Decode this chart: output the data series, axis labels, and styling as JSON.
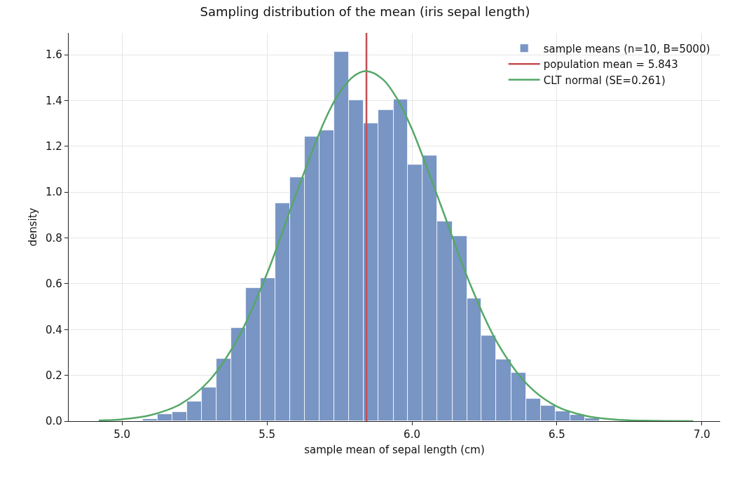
{
  "chart_data": {
    "type": "histogram",
    "title": "Sampling distribution of the mean (iris sepal length)",
    "xlabel": "sample mean of sepal length (cm)",
    "ylabel": "density",
    "series": [
      {
        "type": "histogram",
        "name": "sample means (n=10, B=5000)",
        "color": "#7895c4",
        "bins": [
          5.072,
          5.123,
          5.174,
          5.224,
          5.275,
          5.326,
          5.377,
          5.428,
          5.478,
          5.529,
          5.58,
          5.631,
          5.682,
          5.732,
          5.783,
          5.834,
          5.885,
          5.936,
          5.986,
          6.037,
          6.088,
          6.139,
          6.19,
          6.24,
          6.291,
          6.342,
          6.393,
          6.444,
          6.494,
          6.545,
          6.596,
          6.647
        ],
        "values": [
          0.01,
          0.03,
          0.04,
          0.085,
          0.146,
          0.273,
          0.408,
          0.582,
          0.625,
          0.951,
          1.065,
          1.242,
          1.27,
          1.612,
          1.4,
          1.3,
          1.359,
          1.405,
          1.12,
          1.16,
          0.872,
          0.807,
          0.536,
          0.372,
          0.268,
          0.21,
          0.097,
          0.066,
          0.042,
          0.027,
          0.011
        ]
      },
      {
        "type": "line",
        "name": "population mean = 5.843",
        "color": "#c44e52",
        "x": [
          5.843,
          5.843
        ],
        "values": [
          0,
          1.695
        ]
      },
      {
        "type": "line",
        "name": "CLT normal (SE=0.261)",
        "color": "#55a868",
        "x": [
          4.92,
          5.0,
          5.1,
          5.2,
          5.3,
          5.4,
          5.5,
          5.6,
          5.7,
          5.75,
          5.8,
          5.843,
          5.9,
          5.95,
          6.0,
          6.1,
          6.2,
          6.3,
          6.4,
          6.5,
          6.6,
          6.7,
          6.8,
          6.97
        ],
        "values": [
          0.003,
          0.008,
          0.027,
          0.073,
          0.176,
          0.362,
          0.644,
          0.991,
          1.315,
          1.434,
          1.507,
          1.528,
          1.492,
          1.405,
          1.275,
          0.941,
          0.6,
          0.33,
          0.157,
          0.064,
          0.023,
          0.007,
          0.002,
          0.0
        ]
      }
    ],
    "xlim": [
      4.816,
      7.063
    ],
    "ylim": [
      0,
      1.695
    ],
    "xticks": [
      {
        "value": 5,
        "label": "5.0"
      },
      5.5,
      {
        "value": 6,
        "label": "6.0"
      },
      6.5,
      {
        "value": 7,
        "label": "7.0"
      }
    ],
    "yticks": [
      {
        "value": 0,
        "label": "0.0"
      },
      0.2,
      0.4,
      0.6,
      0.8,
      {
        "value": 1,
        "label": "1.0"
      },
      1.2,
      1.4,
      1.6
    ],
    "grid": true,
    "legend": "top right"
  }
}
